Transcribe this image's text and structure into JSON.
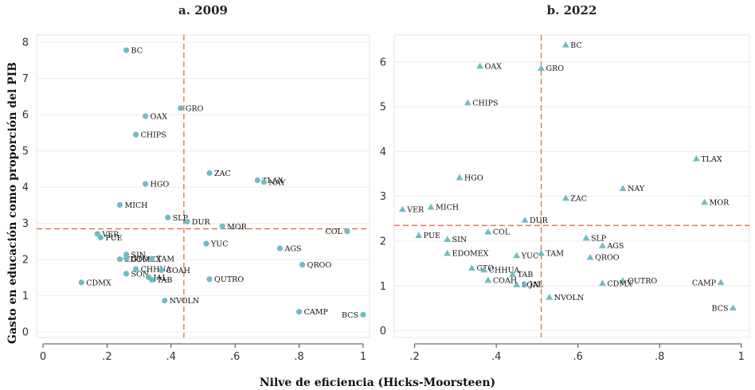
{
  "figure": {
    "ylabel": "Gasto en educación como proporción del PIB",
    "xlabel": "Nilve de eficiencia (Hicks-Moorsteen)"
  },
  "colors": {
    "marker": "#6fbdc2",
    "refline": "#d9603b"
  },
  "chart_data": [
    {
      "type": "scatter",
      "title": "a. 2009",
      "marker": "circle",
      "xlim": [
        -0.02,
        1.02
      ],
      "ylim": [
        -0.15,
        8.2
      ],
      "xticks": [
        0,
        0.2,
        0.4,
        0.6,
        0.8,
        1
      ],
      "xtick_labels": [
        "0",
        ".2",
        ".4",
        ".6",
        ".8",
        "1"
      ],
      "yticks": [
        0,
        1,
        2,
        3,
        4,
        5,
        6,
        7,
        8
      ],
      "ytick_labels": [
        "0",
        "1",
        "2",
        "3",
        "4",
        "5",
        "6",
        "7",
        "8"
      ],
      "vline": 0.44,
      "hline": 2.85,
      "points": [
        {
          "label": "BC",
          "x": 0.26,
          "y": 7.78
        },
        {
          "label": "GRO",
          "x": 0.43,
          "y": 6.18
        },
        {
          "label": "OAX",
          "x": 0.32,
          "y": 5.96
        },
        {
          "label": "CHIPS",
          "x": 0.29,
          "y": 5.45
        },
        {
          "label": "ZAC",
          "x": 0.52,
          "y": 4.39
        },
        {
          "label": "TLAX",
          "x": 0.67,
          "y": 4.19
        },
        {
          "label": "NAY",
          "x": 0.69,
          "y": 4.14
        },
        {
          "label": "HGO",
          "x": 0.32,
          "y": 4.09
        },
        {
          "label": "MICH",
          "x": 0.24,
          "y": 3.51
        },
        {
          "label": "SLP",
          "x": 0.39,
          "y": 3.16
        },
        {
          "label": "DUR",
          "x": 0.45,
          "y": 3.05
        },
        {
          "label": "MOR",
          "x": 0.56,
          "y": 2.92
        },
        {
          "label": "COL",
          "x": 0.95,
          "y": 2.78
        },
        {
          "label": "VER",
          "x": 0.17,
          "y": 2.71
        },
        {
          "label": "PUE",
          "x": 0.18,
          "y": 2.61
        },
        {
          "label": "YUC",
          "x": 0.51,
          "y": 2.44
        },
        {
          "label": "AGS",
          "x": 0.74,
          "y": 2.31
        },
        {
          "label": "SIN",
          "x": 0.26,
          "y": 2.14
        },
        {
          "label": "EDOMEX",
          "x": 0.24,
          "y": 2.01
        },
        {
          "label": "GTO",
          "x": 0.26,
          "y": 2.03
        },
        {
          "label": "TAM",
          "x": 0.34,
          "y": 2.02
        },
        {
          "label": "QROO",
          "x": 0.81,
          "y": 1.86
        },
        {
          "label": "CHHUA",
          "x": 0.29,
          "y": 1.74
        },
        {
          "label": "COAH",
          "x": 0.37,
          "y": 1.71
        },
        {
          "label": "SON",
          "x": 0.26,
          "y": 1.61
        },
        {
          "label": "JAL",
          "x": 0.33,
          "y": 1.51
        },
        {
          "label": "TAB",
          "x": 0.34,
          "y": 1.44
        },
        {
          "label": "QUTRO",
          "x": 0.52,
          "y": 1.46
        },
        {
          "label": "CDMX",
          "x": 0.12,
          "y": 1.37
        },
        {
          "label": "NVOLN",
          "x": 0.38,
          "y": 0.87
        },
        {
          "label": "CAMP",
          "x": 0.8,
          "y": 0.56
        },
        {
          "label": "BCS",
          "x": 1.0,
          "y": 0.48
        }
      ]
    },
    {
      "type": "scatter",
      "title": "b. 2022",
      "marker": "triangle",
      "xlim": [
        0.15,
        1.02
      ],
      "ylim": [
        -0.15,
        6.6
      ],
      "xticks": [
        0.2,
        0.4,
        0.6,
        0.8,
        1
      ],
      "xtick_labels": [
        ".2",
        ".4",
        ".6",
        ".8",
        "1"
      ],
      "yticks": [
        0,
        1,
        2,
        3,
        4,
        5,
        6
      ],
      "ytick_labels": [
        "0",
        "1",
        "2",
        "3",
        "4",
        "5",
        "6"
      ],
      "vline": 0.51,
      "hline": 2.35,
      "points": [
        {
          "label": "BC",
          "x": 0.57,
          "y": 6.38
        },
        {
          "label": "OAX",
          "x": 0.36,
          "y": 5.91
        },
        {
          "label": "GRO",
          "x": 0.51,
          "y": 5.86
        },
        {
          "label": "CHIPS",
          "x": 0.33,
          "y": 5.09
        },
        {
          "label": "TLAX",
          "x": 0.89,
          "y": 3.84
        },
        {
          "label": "HGO",
          "x": 0.31,
          "y": 3.42
        },
        {
          "label": "NAY",
          "x": 0.71,
          "y": 3.18
        },
        {
          "label": "ZAC",
          "x": 0.57,
          "y": 2.96
        },
        {
          "label": "MOR",
          "x": 0.91,
          "y": 2.87
        },
        {
          "label": "MICH",
          "x": 0.24,
          "y": 2.76
        },
        {
          "label": "VER",
          "x": 0.17,
          "y": 2.71
        },
        {
          "label": "DUR",
          "x": 0.47,
          "y": 2.47
        },
        {
          "label": "COL",
          "x": 0.38,
          "y": 2.21
        },
        {
          "label": "PUE",
          "x": 0.21,
          "y": 2.13
        },
        {
          "label": "SIN",
          "x": 0.28,
          "y": 2.04
        },
        {
          "label": "SLP",
          "x": 0.62,
          "y": 2.07
        },
        {
          "label": "AGS",
          "x": 0.66,
          "y": 1.9
        },
        {
          "label": "EDOMEX",
          "x": 0.28,
          "y": 1.73
        },
        {
          "label": "TAM",
          "x": 0.51,
          "y": 1.73
        },
        {
          "label": "YUC",
          "x": 0.45,
          "y": 1.68
        },
        {
          "label": "QROO",
          "x": 0.63,
          "y": 1.64
        },
        {
          "label": "GTO",
          "x": 0.34,
          "y": 1.4
        },
        {
          "label": "CHHUA",
          "x": 0.37,
          "y": 1.36
        },
        {
          "label": "TAB",
          "x": 0.44,
          "y": 1.26
        },
        {
          "label": "COAH",
          "x": 0.38,
          "y": 1.13
        },
        {
          "label": "QUTRO",
          "x": 0.71,
          "y": 1.12
        },
        {
          "label": "CAMP",
          "x": 0.95,
          "y": 1.08
        },
        {
          "label": "SON",
          "x": 0.45,
          "y": 1.03
        },
        {
          "label": "JAL",
          "x": 0.47,
          "y": 1.04
        },
        {
          "label": "CDMX",
          "x": 0.66,
          "y": 1.06
        },
        {
          "label": "NVOLN",
          "x": 0.53,
          "y": 0.75
        },
        {
          "label": "BCS",
          "x": 0.98,
          "y": 0.51
        }
      ]
    }
  ]
}
